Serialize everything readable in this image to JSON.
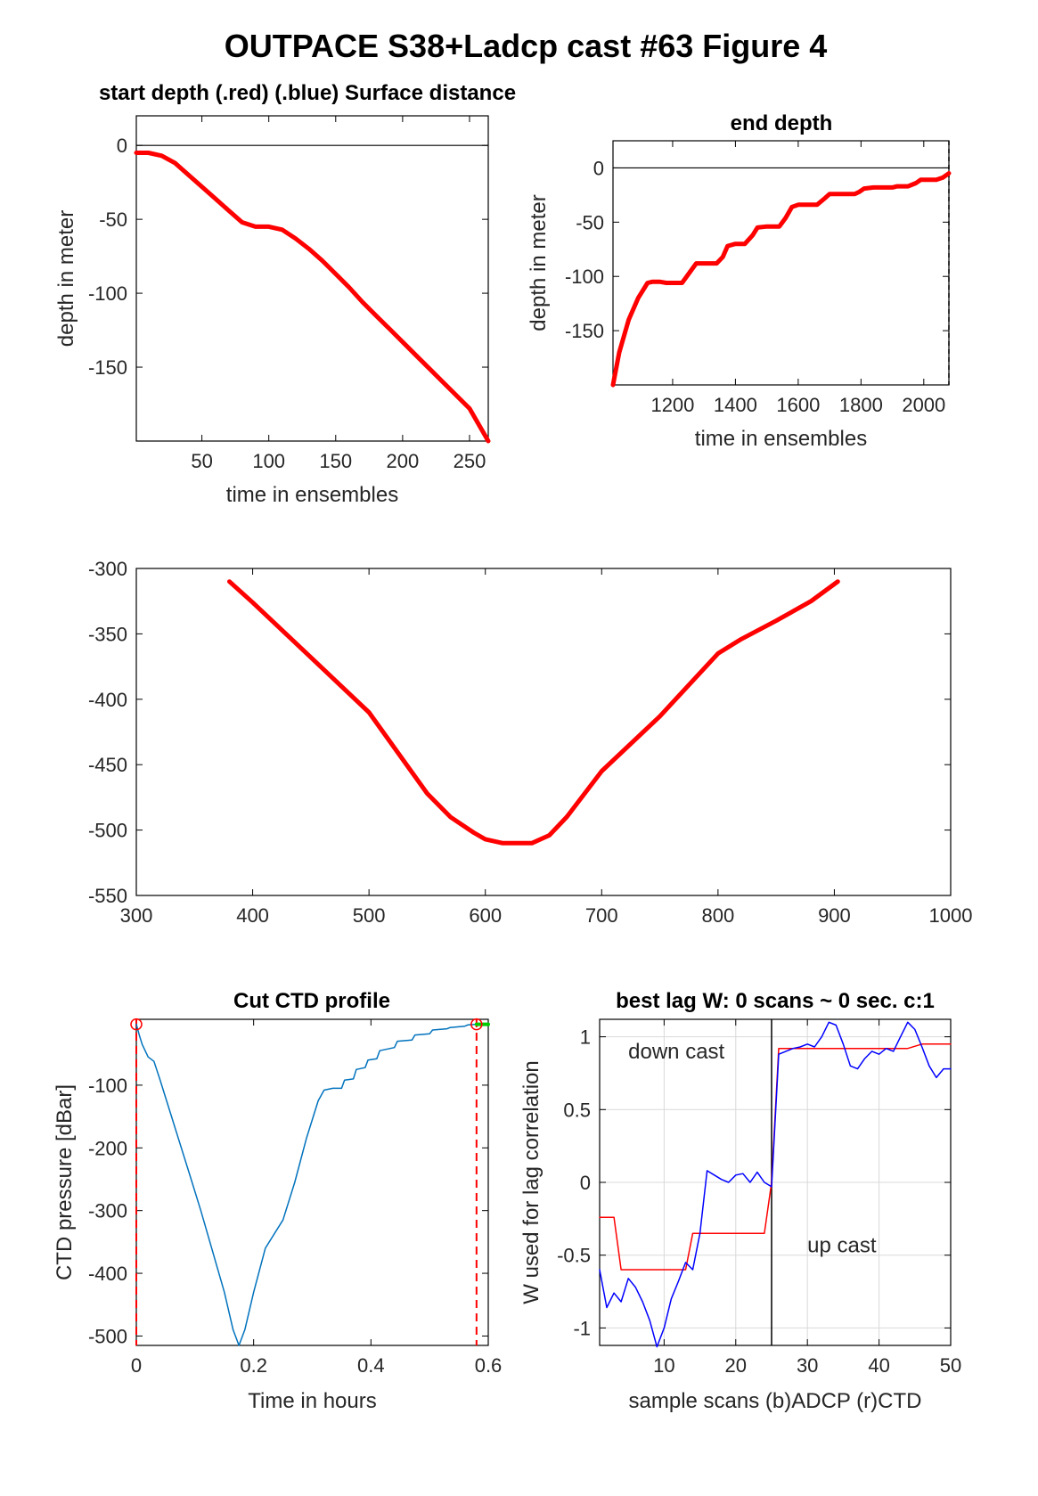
{
  "figure_title": "OUTPACE S38+Ladcp cast #63   Figure 4",
  "chart_data": [
    {
      "id": "p1",
      "type": "line",
      "title": "start depth (.red) (.blue) Surface distance",
      "xlabel": "time in ensembles",
      "ylabel": "depth in meter",
      "xlim": [
        1,
        264
      ],
      "ylim": [
        -200,
        20
      ],
      "xticks": [
        50,
        100,
        150,
        200,
        250
      ],
      "yticks": [
        0,
        -50,
        -100,
        -150
      ],
      "hlines": [
        0
      ],
      "grid": false,
      "series": [
        {
          "color": "#ff0000",
          "x": [
            1,
            10,
            20,
            30,
            40,
            50,
            60,
            70,
            80,
            90,
            100,
            110,
            120,
            130,
            140,
            150,
            160,
            170,
            180,
            190,
            200,
            210,
            220,
            230,
            240,
            250,
            264
          ],
          "y": [
            -5,
            -5,
            -7,
            -12,
            -20,
            -28,
            -36,
            -44,
            -52,
            -55,
            -55,
            -57,
            -63,
            -70,
            -78,
            -87,
            -96,
            -106,
            -115,
            -124,
            -133,
            -142,
            -151,
            -160,
            -169,
            -178,
            -200
          ]
        }
      ]
    },
    {
      "id": "p2",
      "type": "line",
      "title": "end depth",
      "xlabel": "time in ensembles",
      "ylabel": "depth in meter",
      "xlim": [
        1010,
        2080
      ],
      "ylim": [
        -200,
        25
      ],
      "xticks": [
        1200,
        1400,
        1600,
        1800,
        2000
      ],
      "yticks": [
        0,
        -50,
        -100,
        -150
      ],
      "hlines": [
        0
      ],
      "vlines": [
        2080
      ],
      "grid": false,
      "series": [
        {
          "color": "#ff0000",
          "x": [
            1010,
            1030,
            1060,
            1090,
            1120,
            1135,
            1160,
            1180,
            1230,
            1255,
            1275,
            1300,
            1340,
            1360,
            1375,
            1400,
            1430,
            1455,
            1470,
            1500,
            1540,
            1560,
            1580,
            1600,
            1660,
            1685,
            1700,
            1730,
            1780,
            1795,
            1810,
            1840,
            1900,
            1915,
            1950,
            1975,
            1990,
            2040,
            2060,
            2080
          ],
          "y": [
            -200,
            -170,
            -140,
            -120,
            -106,
            -105,
            -105,
            -106,
            -106,
            -96,
            -88,
            -88,
            -88,
            -82,
            -72,
            -70,
            -70,
            -62,
            -55,
            -54,
            -54,
            -46,
            -36,
            -34,
            -34,
            -28,
            -24,
            -24,
            -24,
            -22,
            -19,
            -18,
            -18,
            -17,
            -17,
            -14,
            -11,
            -11,
            -9,
            -5
          ]
        }
      ]
    },
    {
      "id": "p3",
      "type": "line",
      "title": "",
      "xlabel": "",
      "ylabel": "",
      "xlim": [
        300,
        1000
      ],
      "ylim": [
        -550,
        -300
      ],
      "xticks": [
        300,
        400,
        500,
        600,
        700,
        800,
        900,
        1000
      ],
      "yticks": [
        -300,
        -350,
        -400,
        -450,
        -500,
        -550
      ],
      "grid": false,
      "series": [
        {
          "color": "#ff0000",
          "x": [
            380,
            400,
            450,
            500,
            550,
            570,
            590,
            600,
            615,
            640,
            655,
            670,
            700,
            750,
            800,
            820,
            850,
            880,
            903
          ],
          "y": [
            -310,
            -326,
            -368,
            -410,
            -472,
            -490,
            -502,
            -507,
            -510,
            -510,
            -504,
            -490,
            -455,
            -413,
            -365,
            -354,
            -340,
            -325,
            -310
          ]
        }
      ]
    },
    {
      "id": "p4",
      "type": "line",
      "title": "Cut CTD profile",
      "xlabel": "Time in hours",
      "ylabel": "CTD pressure [dBar]",
      "xlim": [
        0,
        0.6
      ],
      "ylim": [
        -515,
        5
      ],
      "xticks": [
        0,
        0.2,
        0.4,
        0.6
      ],
      "yticks": [
        -100,
        -200,
        -300,
        -400,
        -500
      ],
      "grid": false,
      "series": [
        {
          "color": "#0072bd",
          "x": [
            0,
            0.005,
            0.01,
            0.02,
            0.03,
            0.04,
            0.05,
            0.07,
            0.09,
            0.11,
            0.13,
            0.15,
            0.165,
            0.175,
            0.185,
            0.2,
            0.22,
            0.25,
            0.27,
            0.29,
            0.3,
            0.31,
            0.32,
            0.335,
            0.35,
            0.355,
            0.37,
            0.375,
            0.39,
            0.395,
            0.41,
            0.415,
            0.44,
            0.445,
            0.47,
            0.475,
            0.5,
            0.505,
            0.53,
            0.535,
            0.56,
            0.565,
            0.58
          ],
          "y": [
            -3,
            -20,
            -35,
            -55,
            -62,
            -90,
            -120,
            -180,
            -240,
            -300,
            -365,
            -430,
            -490,
            -515,
            -490,
            -430,
            -360,
            -315,
            -255,
            -185,
            -155,
            -125,
            -108,
            -105,
            -105,
            -92,
            -90,
            -75,
            -72,
            -60,
            -58,
            -45,
            -40,
            -30,
            -28,
            -20,
            -18,
            -12,
            -10,
            -8,
            -6,
            -4,
            -3
          ]
        },
        {
          "color": "#00cc00",
          "x": [
            0.58,
            0.6
          ],
          "y": [
            -3,
            -3
          ]
        }
      ],
      "vlines_dashed": [
        0,
        0.58
      ],
      "markers": [
        {
          "x": 0,
          "y": -3
        },
        {
          "x": 0.58,
          "y": -3
        }
      ]
    },
    {
      "id": "p5",
      "type": "line",
      "title": "best lag W: 0 scans ~ 0 sec.  c:1",
      "xlabel": "sample scans (b)ADCP (r)CTD",
      "ylabel": "W used for lag correlation",
      "xlim": [
        1,
        50
      ],
      "ylim": [
        -1.12,
        1.12
      ],
      "xticks": [
        10,
        20,
        30,
        40,
        50
      ],
      "yticks": [
        1,
        0.5,
        0,
        -0.5,
        -1
      ],
      "grid": true,
      "vlines": [
        25
      ],
      "annotations": [
        {
          "text": "down cast",
          "x": 5,
          "y": 0.85
        },
        {
          "text": "up cast",
          "x": 30,
          "y": -0.48
        }
      ],
      "series": [
        {
          "color": "#ff0000",
          "x": [
            1,
            3,
            4,
            13,
            14,
            24,
            25,
            26,
            27,
            43,
            44,
            46,
            47,
            50
          ],
          "y": [
            -0.24,
            -0.24,
            -0.6,
            -0.6,
            -0.35,
            -0.35,
            0,
            0.92,
            0.92,
            0.92,
            0.92,
            0.95,
            0.95,
            0.95
          ]
        },
        {
          "color": "#0000ff",
          "x": [
            1,
            2,
            3,
            4,
            5,
            6,
            7,
            8,
            9,
            10,
            11,
            12,
            13,
            14,
            15,
            16,
            17,
            18,
            19,
            20,
            21,
            22,
            23,
            24,
            25,
            26,
            27,
            28,
            29,
            30,
            31,
            32,
            33,
            34,
            35,
            36,
            37,
            38,
            39,
            40,
            41,
            42,
            43,
            44,
            45,
            46,
            47,
            48,
            49,
            50
          ],
          "y": [
            -0.6,
            -0.86,
            -0.76,
            -0.82,
            -0.66,
            -0.72,
            -0.82,
            -0.95,
            -1.13,
            -1.0,
            -0.8,
            -0.68,
            -0.55,
            -0.6,
            -0.35,
            0.08,
            0.05,
            0.02,
            0.0,
            0.05,
            0.06,
            0.0,
            0.07,
            0.0,
            -0.03,
            0.88,
            0.9,
            0.92,
            0.93,
            0.95,
            0.93,
            1.0,
            1.1,
            1.08,
            0.95,
            0.8,
            0.78,
            0.85,
            0.9,
            0.88,
            0.92,
            0.9,
            1.0,
            1.1,
            1.05,
            0.93,
            0.8,
            0.72,
            0.78,
            0.78
          ]
        }
      ]
    }
  ]
}
